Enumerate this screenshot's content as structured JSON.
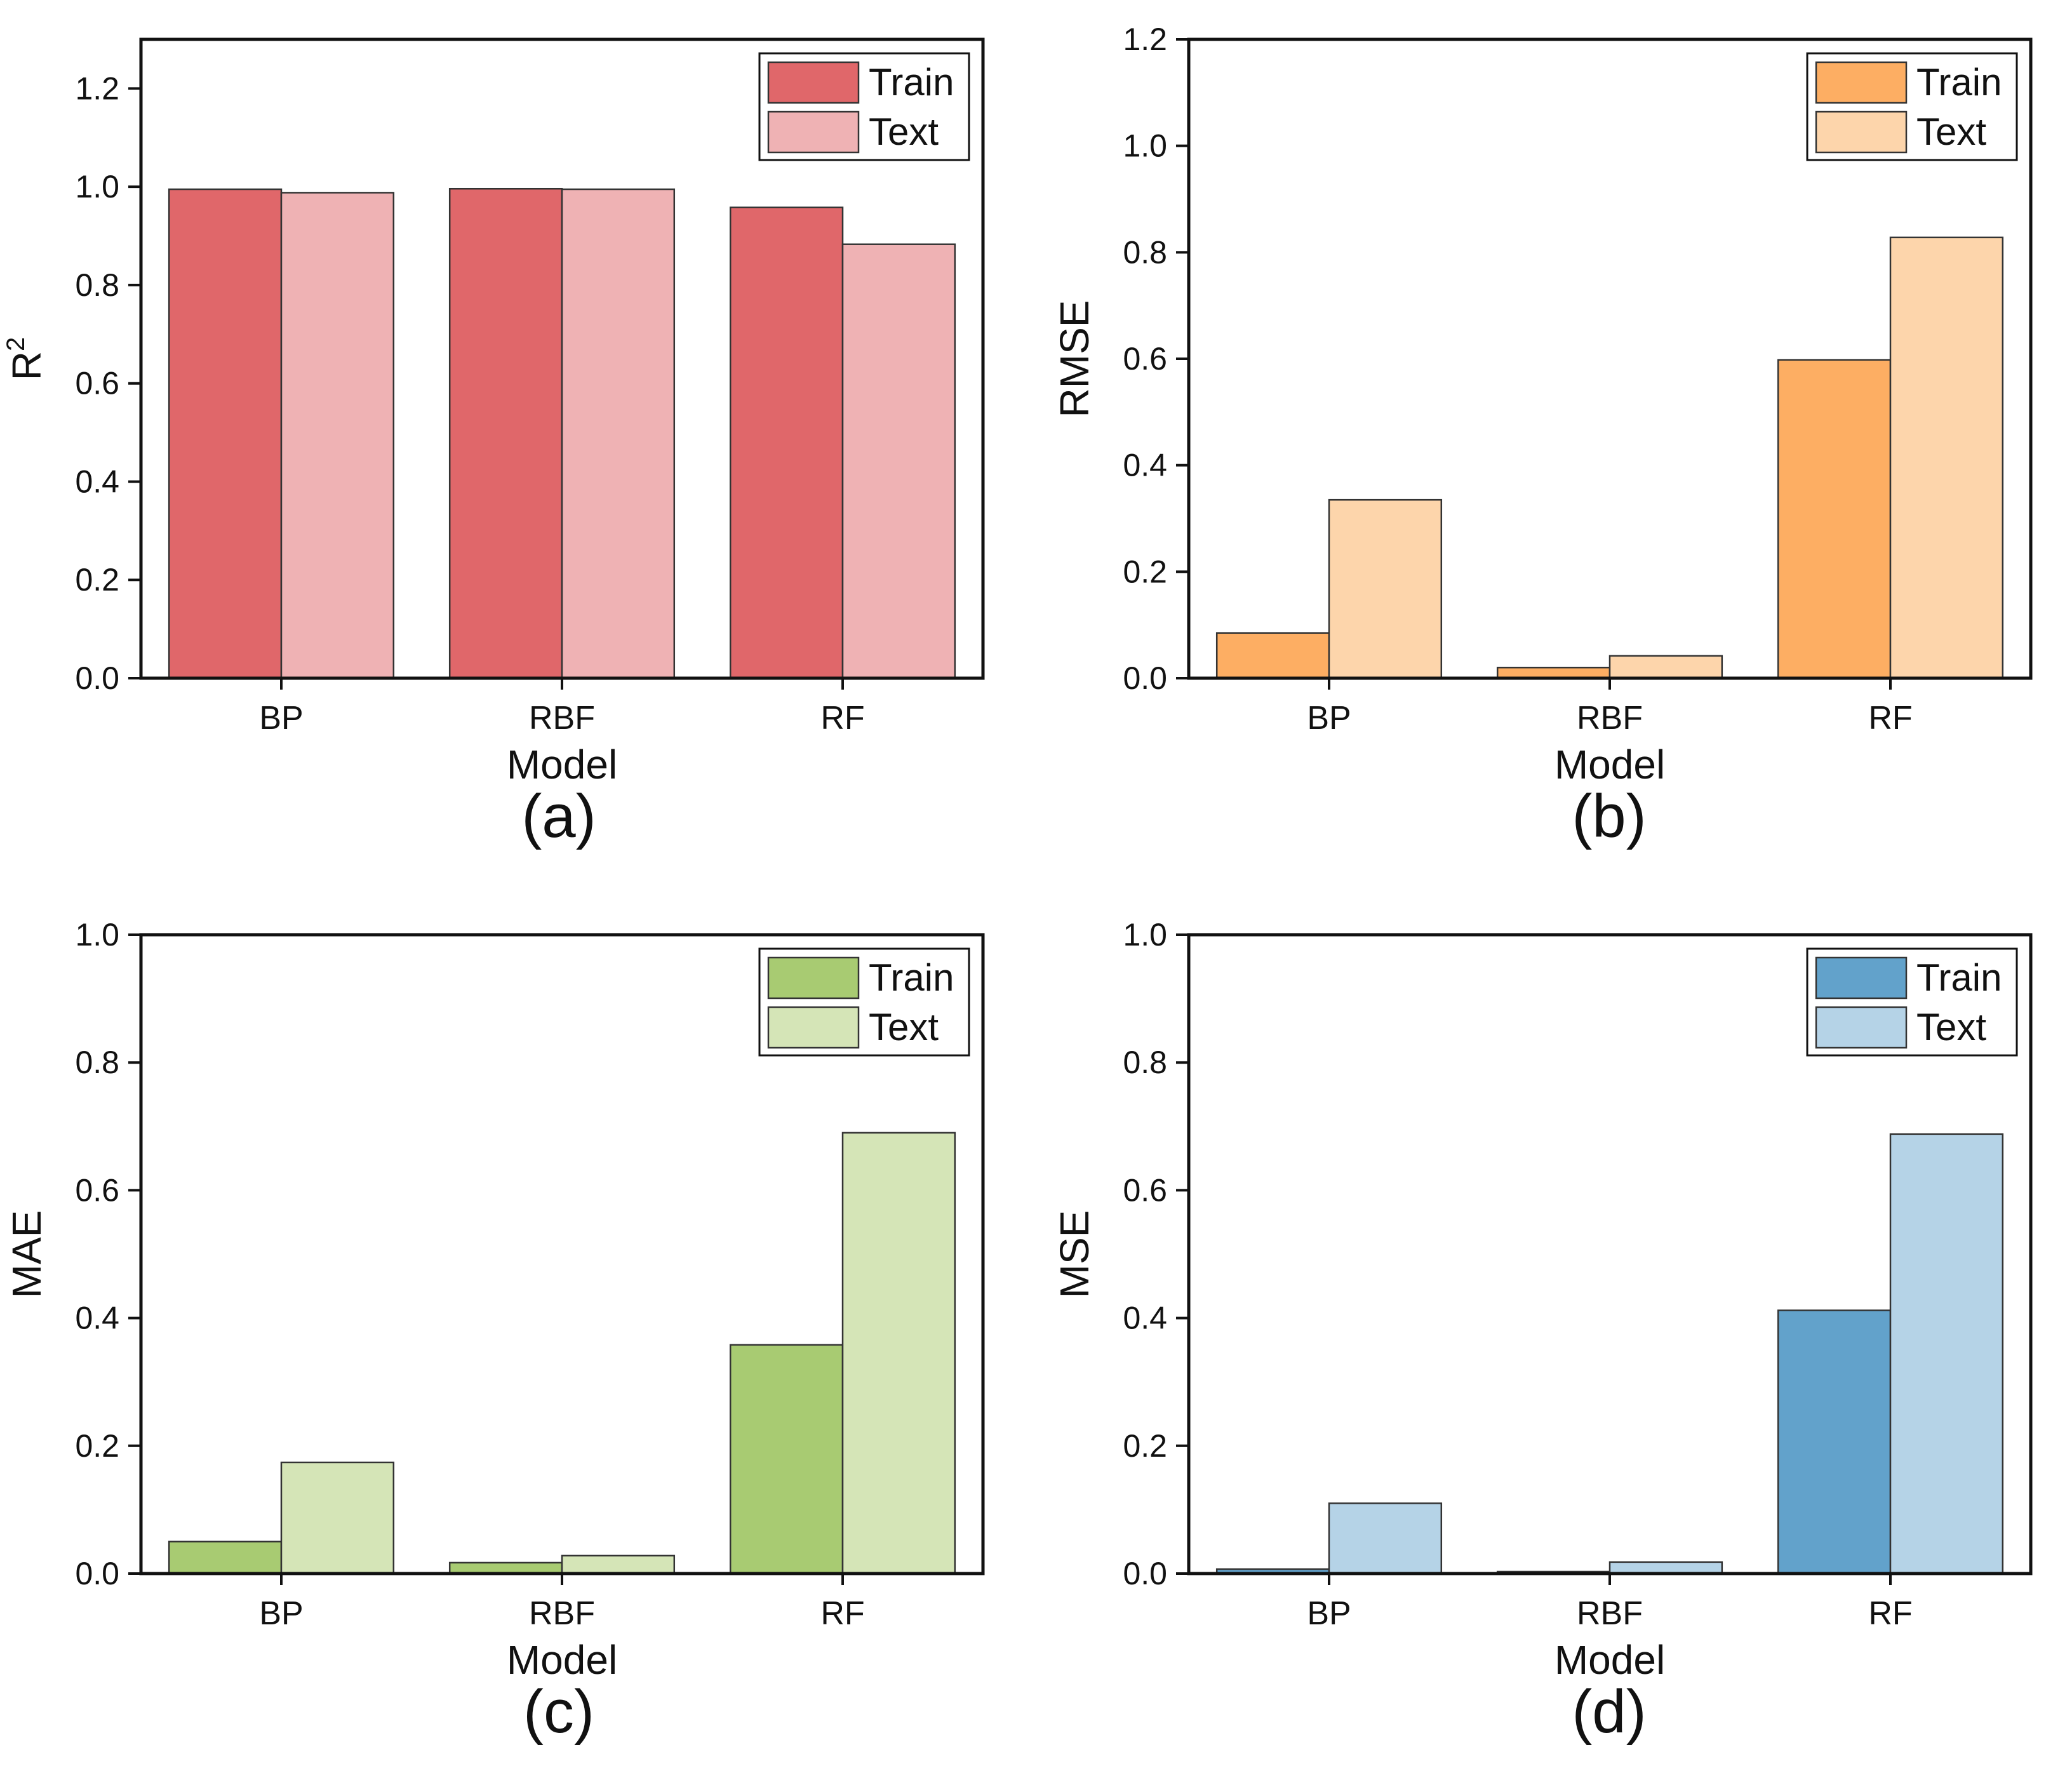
{
  "chart_data": [
    {
      "type": "bar",
      "panel_label": "(a)",
      "categories": [
        "BP",
        "RBF",
        "RF"
      ],
      "series": [
        {
          "name": "Train",
          "values": [
            0.995,
            0.996,
            0.958
          ],
          "color": "#e0676a"
        },
        {
          "name": "Text",
          "values": [
            0.988,
            0.995,
            0.883
          ],
          "color": "#efb2b4"
        }
      ],
      "xlabel": "Model",
      "ylabel": "R",
      "ylabel_sup": "2",
      "ylim": [
        0,
        1.3
      ],
      "yticks": [
        "0.0",
        "0.2",
        "0.4",
        "0.6",
        "0.8",
        "1.0",
        "1.2"
      ],
      "ytick_values": [
        0,
        0.2,
        0.4,
        0.6,
        0.8,
        1.0,
        1.2
      ],
      "legend": "top-right",
      "grid": false
    },
    {
      "type": "bar",
      "panel_label": "(b)",
      "categories": [
        "BP",
        "RBF",
        "RF"
      ],
      "series": [
        {
          "name": "Train",
          "values": [
            0.085,
            0.02,
            0.598
          ],
          "color": "#fdae63"
        },
        {
          "name": "Text",
          "values": [
            0.335,
            0.042,
            0.828
          ],
          "color": "#fdd5ab"
        }
      ],
      "xlabel": "Model",
      "ylabel": "RMSE",
      "ylabel_sup": "",
      "ylim": [
        0,
        1.2
      ],
      "yticks": [
        "0.0",
        "0.2",
        "0.4",
        "0.6",
        "0.8",
        "1.0",
        "1.2"
      ],
      "ytick_values": [
        0,
        0.2,
        0.4,
        0.6,
        0.8,
        1.0,
        1.2
      ],
      "legend": "top-right",
      "grid": false
    },
    {
      "type": "bar",
      "panel_label": "(c)",
      "categories": [
        "BP",
        "RBF",
        "RF"
      ],
      "series": [
        {
          "name": "Train",
          "values": [
            0.05,
            0.017,
            0.358
          ],
          "color": "#a8cb72"
        },
        {
          "name": "Text",
          "values": [
            0.174,
            0.028,
            0.69
          ],
          "color": "#d5e5b7"
        }
      ],
      "xlabel": "Model",
      "ylabel": "MAE",
      "ylabel_sup": "",
      "ylim": [
        0,
        1.0
      ],
      "yticks": [
        "0.0",
        "0.2",
        "0.4",
        "0.6",
        "0.8",
        "1.0"
      ],
      "ytick_values": [
        0,
        0.2,
        0.4,
        0.6,
        0.8,
        1.0
      ],
      "legend": "top-right",
      "grid": false
    },
    {
      "type": "bar",
      "panel_label": "(d)",
      "categories": [
        "BP",
        "RBF",
        "RF"
      ],
      "series": [
        {
          "name": "Train",
          "values": [
            0.007,
            0.003,
            0.412
          ],
          "color": "#62a2cb"
        },
        {
          "name": "Text",
          "values": [
            0.11,
            0.018,
            0.688
          ],
          "color": "#b5d3e7"
        }
      ],
      "xlabel": "Model",
      "ylabel": "MSE",
      "ylabel_sup": "",
      "ylim": [
        0,
        1.0
      ],
      "yticks": [
        "0.0",
        "0.2",
        "0.4",
        "0.6",
        "0.8",
        "1.0"
      ],
      "ytick_values": [
        0,
        0.2,
        0.4,
        0.6,
        0.8,
        1.0
      ],
      "legend": "top-right",
      "grid": false
    }
  ]
}
